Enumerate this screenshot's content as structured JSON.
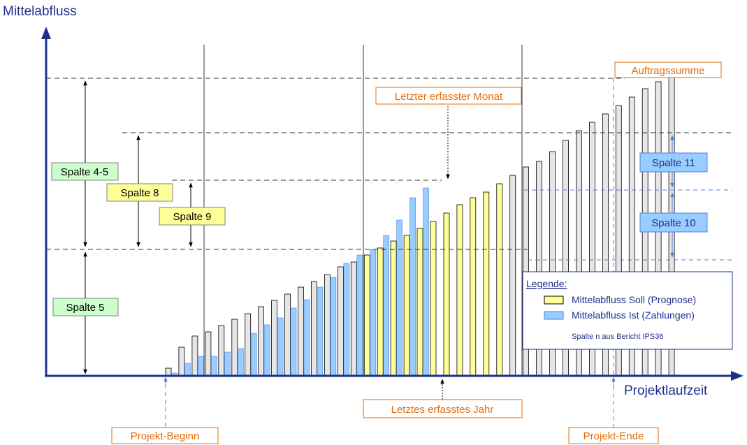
{
  "axes": {
    "y_title": "Mittelabfluss",
    "x_title": "Projektlaufzeit"
  },
  "callouts": {
    "auftragssumme": "Auftragssumme",
    "letzter_monat": "Letzter erfasster Monat",
    "letztes_jahr": "Letztes erfasstes Jahr",
    "projekt_beginn": "Projekt-Beginn",
    "projekt_ende": "Projekt-Ende"
  },
  "spalten": {
    "spalte_4_5": "Spalte 4-5",
    "spalte_8": "Spalte 8",
    "spalte_9": "Spalte 9",
    "spalte_5": "Spalte 5",
    "spalte_11": "Spalte 11",
    "spalte_10": "Spalte 10"
  },
  "legend": {
    "title": "Legende:",
    "soll": "Mittelabfluss Soll (Prognose)",
    "ist": "Mittelabfluss Ist (Zahlungen)",
    "note": "Spalte n aus Bericht IPS36"
  },
  "colors": {
    "axis": "#1f2f8f",
    "orange": "#e36c0a",
    "green_fill": "#ccffcc",
    "yellow_fill": "#ffff99",
    "blue_box_fill": "#99ccff",
    "bar_gray": "#e6e6e6",
    "bar_yellow": "#ffff99",
    "bar_blue": "#99ccff",
    "dashed_blue": "#4f81d9"
  },
  "chart_data": {
    "type": "bar",
    "soll_heights": [
      10,
      40,
      56,
      62,
      71,
      80,
      88,
      98,
      107,
      116,
      126,
      134,
      144,
      155,
      162,
      172,
      182,
      192,
      200,
      210,
      220,
      232,
      244,
      254,
      262,
      274,
      286,
      298,
      306,
      320,
      336,
      350,
      362,
      374,
      386,
      398,
      410,
      420,
      428
    ],
    "soll_color": [
      "g",
      "g",
      "g",
      "g",
      "g",
      "g",
      "g",
      "g",
      "g",
      "g",
      "g",
      "g",
      "g",
      "g",
      "g",
      "y",
      "y",
      "y",
      "y",
      "y",
      "y",
      "y",
      "y",
      "y",
      "y",
      "y",
      "g",
      "g",
      "g",
      "g",
      "g",
      "g",
      "g",
      "g",
      "g",
      "g",
      "g",
      "g",
      "g"
    ],
    "ist_heights": [
      3,
      17,
      27,
      27,
      33,
      38,
      60,
      72,
      82,
      96,
      108,
      126,
      140,
      160,
      172,
      180,
      200,
      222,
      254,
      268
    ]
  }
}
